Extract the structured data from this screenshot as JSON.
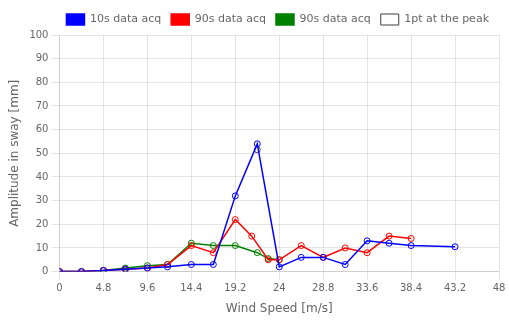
{
  "chart_data": {
    "type": "line",
    "x_label": "Wind Speed [m/s]",
    "y_label": "Amplitude in sway [mm]",
    "marker": "circle",
    "series": [
      {
        "name": "10s data acq",
        "color": "#0000ff",
        "line_style": "solid",
        "x": [
          0,
          2.4,
          4.8,
          7.2,
          9.6,
          11.8,
          14.4,
          16.8,
          19.2,
          21.6,
          24.0,
          26.4,
          28.8,
          31.2,
          33.6,
          36.0,
          38.4,
          43.2
        ],
        "values": [
          0,
          0,
          0.5,
          1.0,
          1.5,
          2.0,
          3.0,
          3.0,
          32.0,
          54.0,
          2.0,
          6.0,
          6.0,
          3.0,
          13.0,
          12.0,
          11.0,
          10.5
        ]
      },
      {
        "name": "90s data acq",
        "color": "#ff0000",
        "line_style": "solid",
        "x": [
          0,
          2.4,
          4.8,
          7.2,
          9.6,
          11.8,
          14.4,
          16.8,
          19.2,
          21.0,
          22.8,
          24.0,
          26.4,
          28.8,
          31.2,
          33.6,
          36.0,
          38.4
        ],
        "values": [
          0,
          0,
          0.5,
          1.0,
          1.5,
          3.0,
          11.0,
          8.0,
          22.0,
          15.0,
          5.0,
          5.0,
          11.0,
          6.0,
          10.0,
          8.0,
          15.0,
          14.0
        ]
      },
      {
        "name": "90s data acq",
        "color": "#008000",
        "line_style": "solid",
        "x": [
          0,
          2.4,
          4.8,
          7.2,
          9.6,
          11.8,
          14.4,
          16.8,
          19.2,
          21.6,
          22.8,
          24.0
        ],
        "values": [
          0,
          0,
          0.5,
          1.5,
          2.5,
          3.0,
          12.0,
          11.0,
          11.0,
          8.0,
          5.5,
          5.0
        ]
      },
      {
        "name": "1pt at the peak",
        "color": "#404040",
        "line_style": "none",
        "x": [
          21.6
        ],
        "values": [
          51.5
        ]
      }
    ],
    "xlim": [
      0,
      48
    ],
    "xticks": [
      0,
      4.8,
      9.6,
      14.4,
      19.2,
      24,
      28.8,
      33.6,
      38.4,
      43.2,
      48
    ],
    "ylim": [
      0,
      100
    ],
    "yticks": [
      0,
      10,
      20,
      30,
      40,
      50,
      60,
      70,
      80,
      90,
      100
    ],
    "grid": true,
    "legend": "upper right"
  }
}
